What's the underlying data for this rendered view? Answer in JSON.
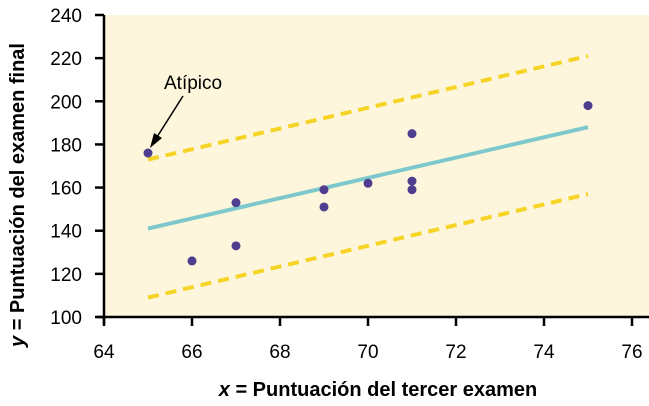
{
  "chart_data": {
    "type": "scatter",
    "title": "",
    "xlabel_var": "x",
    "xlabel": " = Puntuación del tercer examen",
    "ylabel_var": "y",
    "ylabel": " = Puntuación del examen final",
    "xlim": [
      64,
      76
    ],
    "ylim": [
      100,
      240
    ],
    "xticks": [
      "64",
      "66",
      "68",
      "70",
      "72",
      "74",
      "76"
    ],
    "yticks": [
      "100",
      "120",
      "140",
      "160",
      "180",
      "200",
      "220",
      "240"
    ],
    "grid": false,
    "background": "#fdf6dc",
    "points": [
      {
        "x": 65,
        "y": 176
      },
      {
        "x": 66,
        "y": 126
      },
      {
        "x": 67,
        "y": 133
      },
      {
        "x": 67,
        "y": 153
      },
      {
        "x": 69,
        "y": 151
      },
      {
        "x": 69,
        "y": 159
      },
      {
        "x": 70,
        "y": 162
      },
      {
        "x": 71,
        "y": 159
      },
      {
        "x": 71,
        "y": 163
      },
      {
        "x": 71,
        "y": 185
      },
      {
        "x": 75,
        "y": 198
      }
    ],
    "point_color": "#4f3d8f",
    "series": [
      {
        "name": "Línea de regresión",
        "style": "solid",
        "color": "#7cc8cc",
        "x": [
          65,
          75
        ],
        "y": [
          141,
          188
        ]
      },
      {
        "name": "Límite superior",
        "style": "dashed",
        "color": "#f5d426",
        "x": [
          65,
          75
        ],
        "y": [
          173,
          221
        ]
      },
      {
        "name": "Límite inferior",
        "style": "dashed",
        "color": "#f5d426",
        "x": [
          65,
          75
        ],
        "y": [
          109,
          157
        ]
      }
    ],
    "annotations": [
      {
        "text": "Atípico",
        "x": 65,
        "y": 176
      }
    ]
  }
}
